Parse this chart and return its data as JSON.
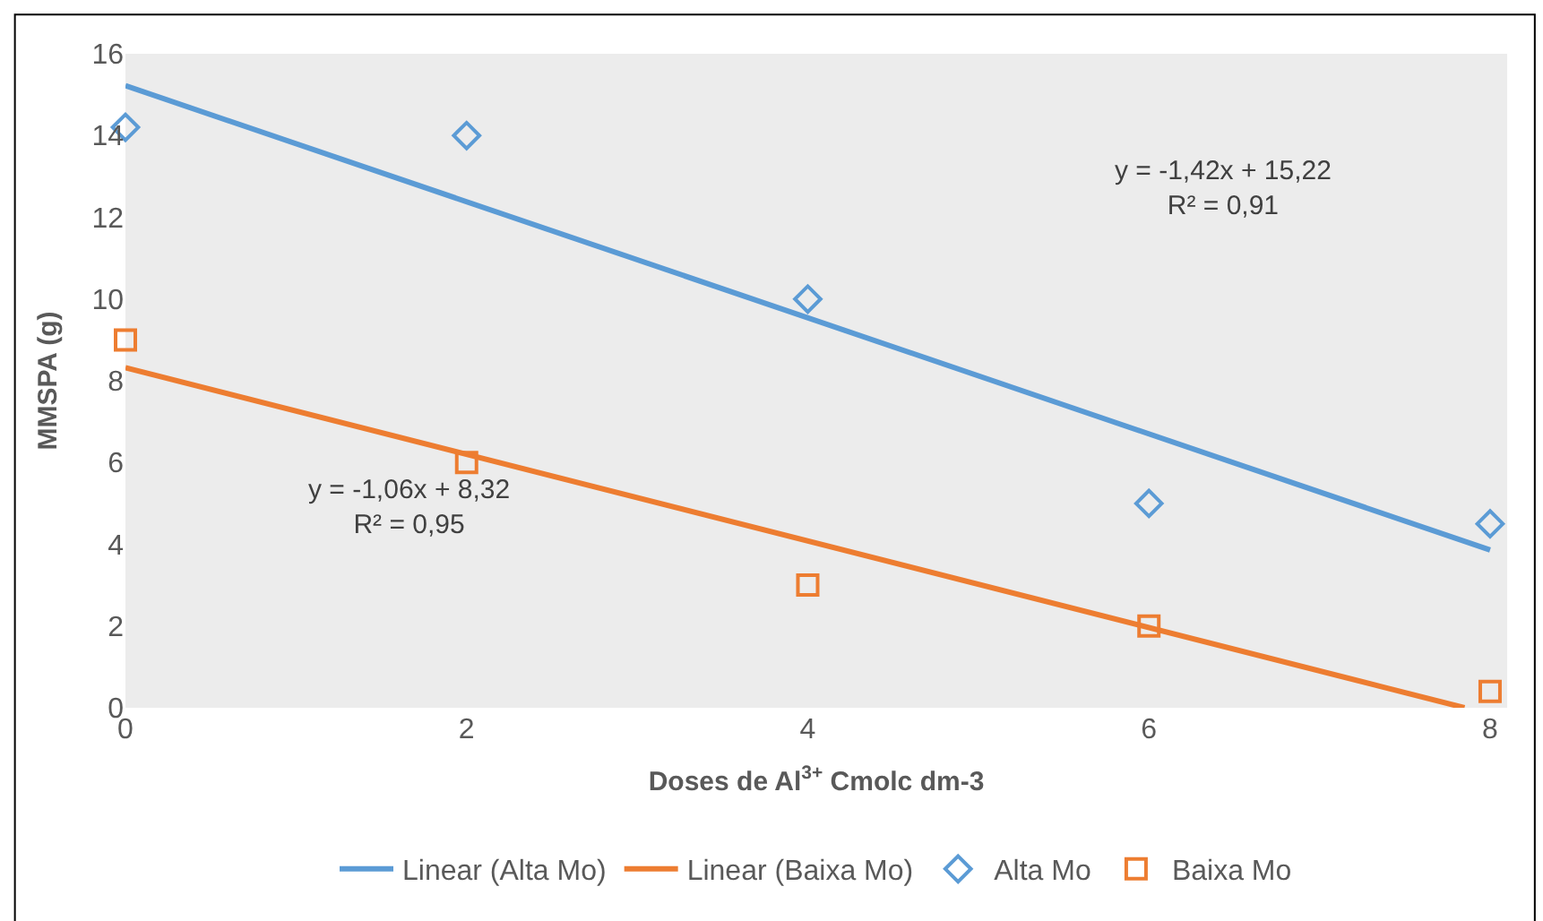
{
  "chart_data": {
    "type": "scatter",
    "xlabel": "Doses de Al$^{3+}$ Cmolc dm-3",
    "ylabel": "MMSPA (g)",
    "xlim": [
      0,
      8.1
    ],
    "xticks": [
      0,
      2,
      4,
      6,
      8
    ],
    "ylim": [
      0,
      16
    ],
    "yticks": [
      0,
      2,
      4,
      6,
      8,
      10,
      12,
      14,
      16
    ],
    "grid": false,
    "legend": "bottom",
    "series": [
      {
        "name": "Alta Mo",
        "marker": "diamond",
        "color": "#5b9bd5",
        "x": [
          0,
          2,
          4,
          6,
          8
        ],
        "values": [
          14.2,
          14.0,
          10.0,
          5.0,
          4.5
        ]
      },
      {
        "name": "Baixa Mo",
        "marker": "square",
        "color": "#ed7d31",
        "x": [
          0,
          2,
          4,
          6,
          8
        ],
        "values": [
          9.0,
          6.0,
          3.0,
          2.0,
          0.4
        ]
      },
      {
        "name": "Linear (Alta Mo)",
        "type": "line",
        "marker": "none",
        "color": "#5b9bd5",
        "x": [
          0,
          8
        ],
        "values": [
          15.22,
          3.86
        ]
      },
      {
        "name": "Linear (Baixa Mo)",
        "type": "line",
        "marker": "none",
        "color": "#ed7d31",
        "x": [
          0,
          7.85
        ],
        "values": [
          8.32,
          0.0
        ]
      }
    ],
    "annotations": [
      "y = -1,42x + 15,22\nR² = 0,91",
      "y = -1,06x + 8,32\nR² = 0,95"
    ]
  }
}
